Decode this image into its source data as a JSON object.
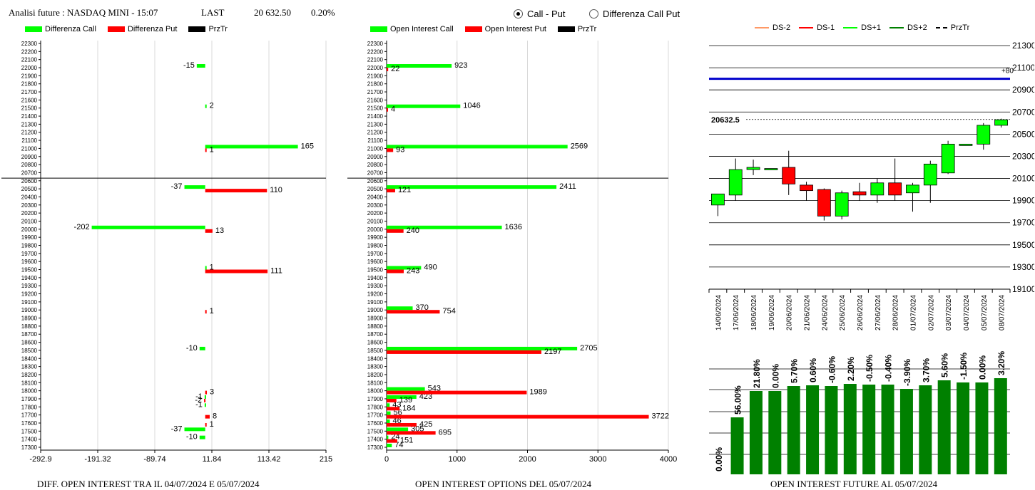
{
  "header": {
    "title": "Analisi future : NASDAQ MINI - 15:07",
    "last_label": "LAST",
    "last_value": "20 632.50",
    "last_change": "0.20%"
  },
  "radio": {
    "option1": "Call - Put",
    "option2": "Differenza Call Put"
  },
  "legend1": {
    "call": "Differenza Call",
    "put": "Differenza Put",
    "prz": "PrzTr",
    "call_color": "#00ff00",
    "put_color": "#ff0000",
    "prz_color": "#000000"
  },
  "legend2": {
    "call": "Open Interest Call",
    "put": "Open Interest Put",
    "prz": "PrzTr"
  },
  "legend3": {
    "ds_m2": "DS-2",
    "ds_m1": "DS-1",
    "ds_p1": "DS+1",
    "ds_p2": "DS+2",
    "prz": "PrzTr"
  },
  "footers": {
    "left": "DIFF. OPEN INTEREST TRA IL 04/07/2024 E 05/07/2024",
    "mid": "OPEN INTEREST OPTIONS DEL 05/07/2024",
    "right": "OPEN INTEREST FUTURE AL 05/07/2024"
  },
  "chart_data": [
    {
      "type": "bar",
      "orientation": "horizontal",
      "strikes": [
        22300,
        22200,
        22100,
        22000,
        21900,
        21800,
        21700,
        21600,
        21500,
        21400,
        21300,
        21200,
        21100,
        21000,
        20900,
        20800,
        20700,
        20600,
        20500,
        20400,
        20300,
        20200,
        20100,
        20000,
        19900,
        19800,
        19700,
        19600,
        19500,
        19400,
        19300,
        19200,
        19100,
        19000,
        18900,
        18800,
        18700,
        18600,
        18500,
        18400,
        18300,
        18200,
        18100,
        18000,
        17900,
        17800,
        17700,
        17600,
        17500,
        17400,
        17300
      ],
      "xlim": [
        -292.9,
        215
      ],
      "xticks": [
        "-292.9",
        "-191.32",
        "-89.74",
        "11.84",
        "113.42",
        "215"
      ],
      "price_line": 20632.5,
      "series": [
        {
          "name": "Differenza Call",
          "points": [
            [
              22000,
              -15
            ],
            [
              21500,
              2
            ],
            [
              21000,
              165
            ],
            [
              20500,
              -37
            ],
            [
              20000,
              -202
            ],
            [
              19500,
              1
            ],
            [
              18500,
              -10
            ],
            [
              17900,
              -1
            ],
            [
              17800,
              -1
            ],
            [
              17500,
              -37
            ],
            [
              17400,
              -10
            ]
          ],
          "labels": [
            "-15",
            "2",
            "165",
            "-37",
            "-202",
            "1",
            "-10",
            "-1",
            "-1",
            "-37",
            "-10"
          ]
        },
        {
          "name": "Differenza Put",
          "points": [
            [
              21000,
              1
            ],
            [
              20500,
              110
            ],
            [
              20000,
              13
            ],
            [
              19500,
              111
            ],
            [
              19000,
              1
            ],
            [
              18000,
              3
            ],
            [
              17900,
              -2
            ],
            [
              17700,
              8
            ],
            [
              17600,
              1
            ]
          ],
          "labels": [
            "1",
            "110",
            "13",
            "111",
            "1",
            "3",
            "-2",
            "8",
            "1"
          ]
        }
      ],
      "xlabel": "DIFF. OPEN INTEREST TRA IL 04/07/2024 E 05/07/2024"
    },
    {
      "type": "bar",
      "orientation": "horizontal",
      "strikes": [
        22300,
        22200,
        22100,
        22000,
        21900,
        21800,
        21700,
        21600,
        21500,
        21400,
        21300,
        21200,
        21100,
        21000,
        20900,
        20800,
        20700,
        20600,
        20500,
        20400,
        20300,
        20200,
        20100,
        20000,
        19900,
        19800,
        19700,
        19600,
        19500,
        19400,
        19300,
        19200,
        19100,
        19000,
        18900,
        18800,
        18700,
        18600,
        18500,
        18400,
        18300,
        18200,
        18100,
        18000,
        17900,
        17800,
        17700,
        17600,
        17500,
        17400,
        17300
      ],
      "xlim": [
        0,
        4000
      ],
      "xticks": [
        "0",
        "1000",
        "2000",
        "3000",
        "4000"
      ],
      "price_line": 20632.5,
      "series": [
        {
          "name": "Open Interest Call",
          "points": [
            [
              22000,
              923
            ],
            [
              21500,
              1046
            ],
            [
              21000,
              2569
            ],
            [
              20500,
              2411
            ],
            [
              20000,
              1636
            ],
            [
              19500,
              490
            ],
            [
              19000,
              370
            ],
            [
              18500,
              2705
            ],
            [
              18000,
              543
            ],
            [
              17900,
              423
            ],
            [
              17800,
              43
            ],
            [
              17700,
              56
            ],
            [
              17600,
              46
            ],
            [
              17500,
              305
            ],
            [
              17400,
              24
            ],
            [
              17300,
              74
            ]
          ],
          "labels": [
            "923",
            "1046",
            "2569",
            "2411",
            "1636",
            "490",
            "370",
            "2705",
            "543",
            "423",
            "43",
            "56",
            "46",
            "305",
            "24",
            "74"
          ]
        },
        {
          "name": "Open Interest Put",
          "points": [
            [
              22000,
              22
            ],
            [
              21500,
              4
            ],
            [
              21000,
              93
            ],
            [
              20500,
              121
            ],
            [
              20000,
              240
            ],
            [
              19500,
              243
            ],
            [
              19000,
              754
            ],
            [
              18500,
              2197
            ],
            [
              18000,
              1989
            ],
            [
              17900,
              139
            ],
            [
              17800,
              184
            ],
            [
              17700,
              3722
            ],
            [
              17600,
              425
            ],
            [
              17500,
              695
            ],
            [
              17400,
              151
            ]
          ],
          "labels": [
            "22",
            "4",
            "93",
            "121",
            "240",
            "243",
            "754",
            "2197",
            "1989",
            "139",
            "184",
            "3722",
            "425",
            "695",
            "151"
          ]
        }
      ],
      "xlabel": "OPEN INTEREST OPTIONS DEL 05/07/2024"
    },
    {
      "type": "candlestick",
      "dates": [
        "14/06/2024",
        "17/06/2024",
        "18/06/2024",
        "19/06/2024",
        "20/06/2024",
        "21/06/2024",
        "24/06/2024",
        "25/06/2024",
        "26/06/2024",
        "27/06/2024",
        "28/06/2024",
        "01/07/2024",
        "02/07/2024",
        "03/07/2024",
        "04/07/2024",
        "05/07/2024",
        "08/07/2024"
      ],
      "ohlc": [
        [
          19860,
          19960,
          19760,
          19960
        ],
        [
          19950,
          20180,
          19900,
          20280
        ],
        [
          20180,
          20200,
          20130,
          20270
        ],
        [
          20190,
          20190,
          20190,
          20190
        ],
        [
          20200,
          20050,
          19950,
          20350
        ],
        [
          20040,
          19990,
          19900,
          20070
        ],
        [
          20000,
          19760,
          19720,
          20010
        ],
        [
          19760,
          19970,
          19730,
          19990
        ],
        [
          19980,
          19950,
          19900,
          20060
        ],
        [
          19950,
          20060,
          19880,
          20100
        ],
        [
          20060,
          19950,
          19900,
          20280
        ],
        [
          19970,
          20040,
          19800,
          20060
        ],
        [
          20040,
          20230,
          19880,
          20260
        ],
        [
          20150,
          20410,
          20140,
          20440
        ],
        [
          20410,
          20410,
          20410,
          20410
        ],
        [
          20410,
          20580,
          20360,
          20600
        ],
        [
          20580,
          20630,
          20560,
          20640
        ]
      ],
      "up_color": "#00ff00",
      "down_color": "#ff0000",
      "ylim": [
        19100,
        21300
      ],
      "yticks": [
        "21300",
        "21100",
        "20900",
        "20700",
        "20500",
        "20300",
        "20100",
        "19900",
        "19700",
        "19500",
        "19300",
        "19100"
      ],
      "price_label": "20632.5",
      "price_value": 20632.5,
      "blue_line_value": 21000,
      "blue_line_label": "+80"
    },
    {
      "type": "bar",
      "values_pct": [
        0.0,
        56.0,
        21.8,
        0.0,
        5.7,
        0.6,
        -0.6,
        2.2,
        -0.5,
        -0.4,
        -3.9,
        3.7,
        5.6,
        -1.5,
        0.0,
        3.2
      ],
      "labels": [
        "0.00%",
        "56.00%",
        "21.80%",
        "0.00%",
        "5.70%",
        "0.60%",
        "-0.60%",
        "2.20%",
        "-0.50%",
        "-0.40%",
        "-3.90%",
        "3.70%",
        "5.60%",
        "-1.50%",
        "0.00%",
        "3.20%"
      ],
      "relative_heights": [
        0.0,
        0.4,
        0.585,
        0.585,
        0.62,
        0.625,
        0.62,
        0.635,
        0.63,
        0.63,
        0.6,
        0.625,
        0.66,
        0.645,
        0.645,
        0.675
      ],
      "color": "#008000",
      "xlabel": "OPEN INTEREST FUTURE AL 05/07/2024"
    }
  ]
}
